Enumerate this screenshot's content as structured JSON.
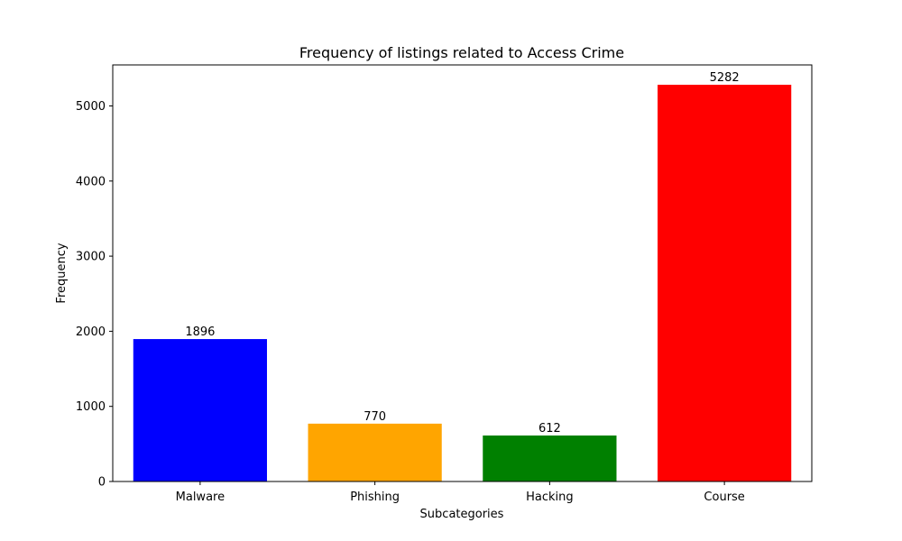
{
  "chart_data": {
    "type": "bar",
    "title": "Frequency of listings related to Access Crime",
    "xlabel": "Subcategories",
    "ylabel": "Frequency",
    "categories": [
      "Malware",
      "Phishing",
      "Hacking",
      "Course"
    ],
    "values": [
      1896,
      770,
      612,
      5282
    ],
    "colors": [
      "#0000ff",
      "#ffa500",
      "#008000",
      "#ff0000"
    ],
    "data_labels": [
      "1896",
      "770",
      "612",
      "5282"
    ],
    "yticks": [
      0,
      1000,
      2000,
      3000,
      4000,
      5000
    ],
    "ytick_labels": [
      "0",
      "1000",
      "2000",
      "3000",
      "4000",
      "5000"
    ],
    "ylim": [
      0,
      5546
    ],
    "grid": false,
    "legend": false
  }
}
